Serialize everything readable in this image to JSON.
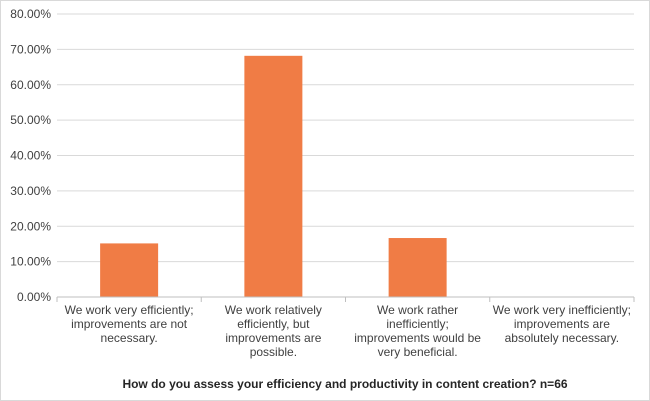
{
  "chart_data": {
    "type": "bar",
    "title": "How do you assess your efficiency and productivity in content creation? n=66",
    "xlabel": "",
    "ylabel": "",
    "ylim": [
      0,
      80
    ],
    "y_tick_step": 10,
    "y_tick_labels": [
      "0.00%",
      "10.00%",
      "20.00%",
      "30.00%",
      "40.00%",
      "50.00%",
      "60.00%",
      "70.00%",
      "80.00%"
    ],
    "categories": [
      "We work very efficiently; improvements are not necessary.",
      "We work relatively efficiently, but improvements are possible.",
      "We work rather inefficiently; improvements would be very beneficial.",
      "We work very inefficiently; improvements are absolutely necessary."
    ],
    "category_lines": [
      [
        "We work very efficiently;",
        "improvements are not",
        "necessary."
      ],
      [
        "We work relatively",
        "efficiently, but",
        "improvements are",
        "possible."
      ],
      [
        "We work rather",
        "inefficiently;",
        "improvements would be",
        "very beneficial."
      ],
      [
        "We work very inefficiently;",
        "improvements are",
        "absolutely necessary."
      ]
    ],
    "values": [
      15.15,
      68.18,
      16.67,
      0
    ],
    "unit": "%",
    "grid": true,
    "legend": "none",
    "bar_color": "#f07c45",
    "grid_color": "#d9d9d9",
    "text_color": "#404040"
  }
}
